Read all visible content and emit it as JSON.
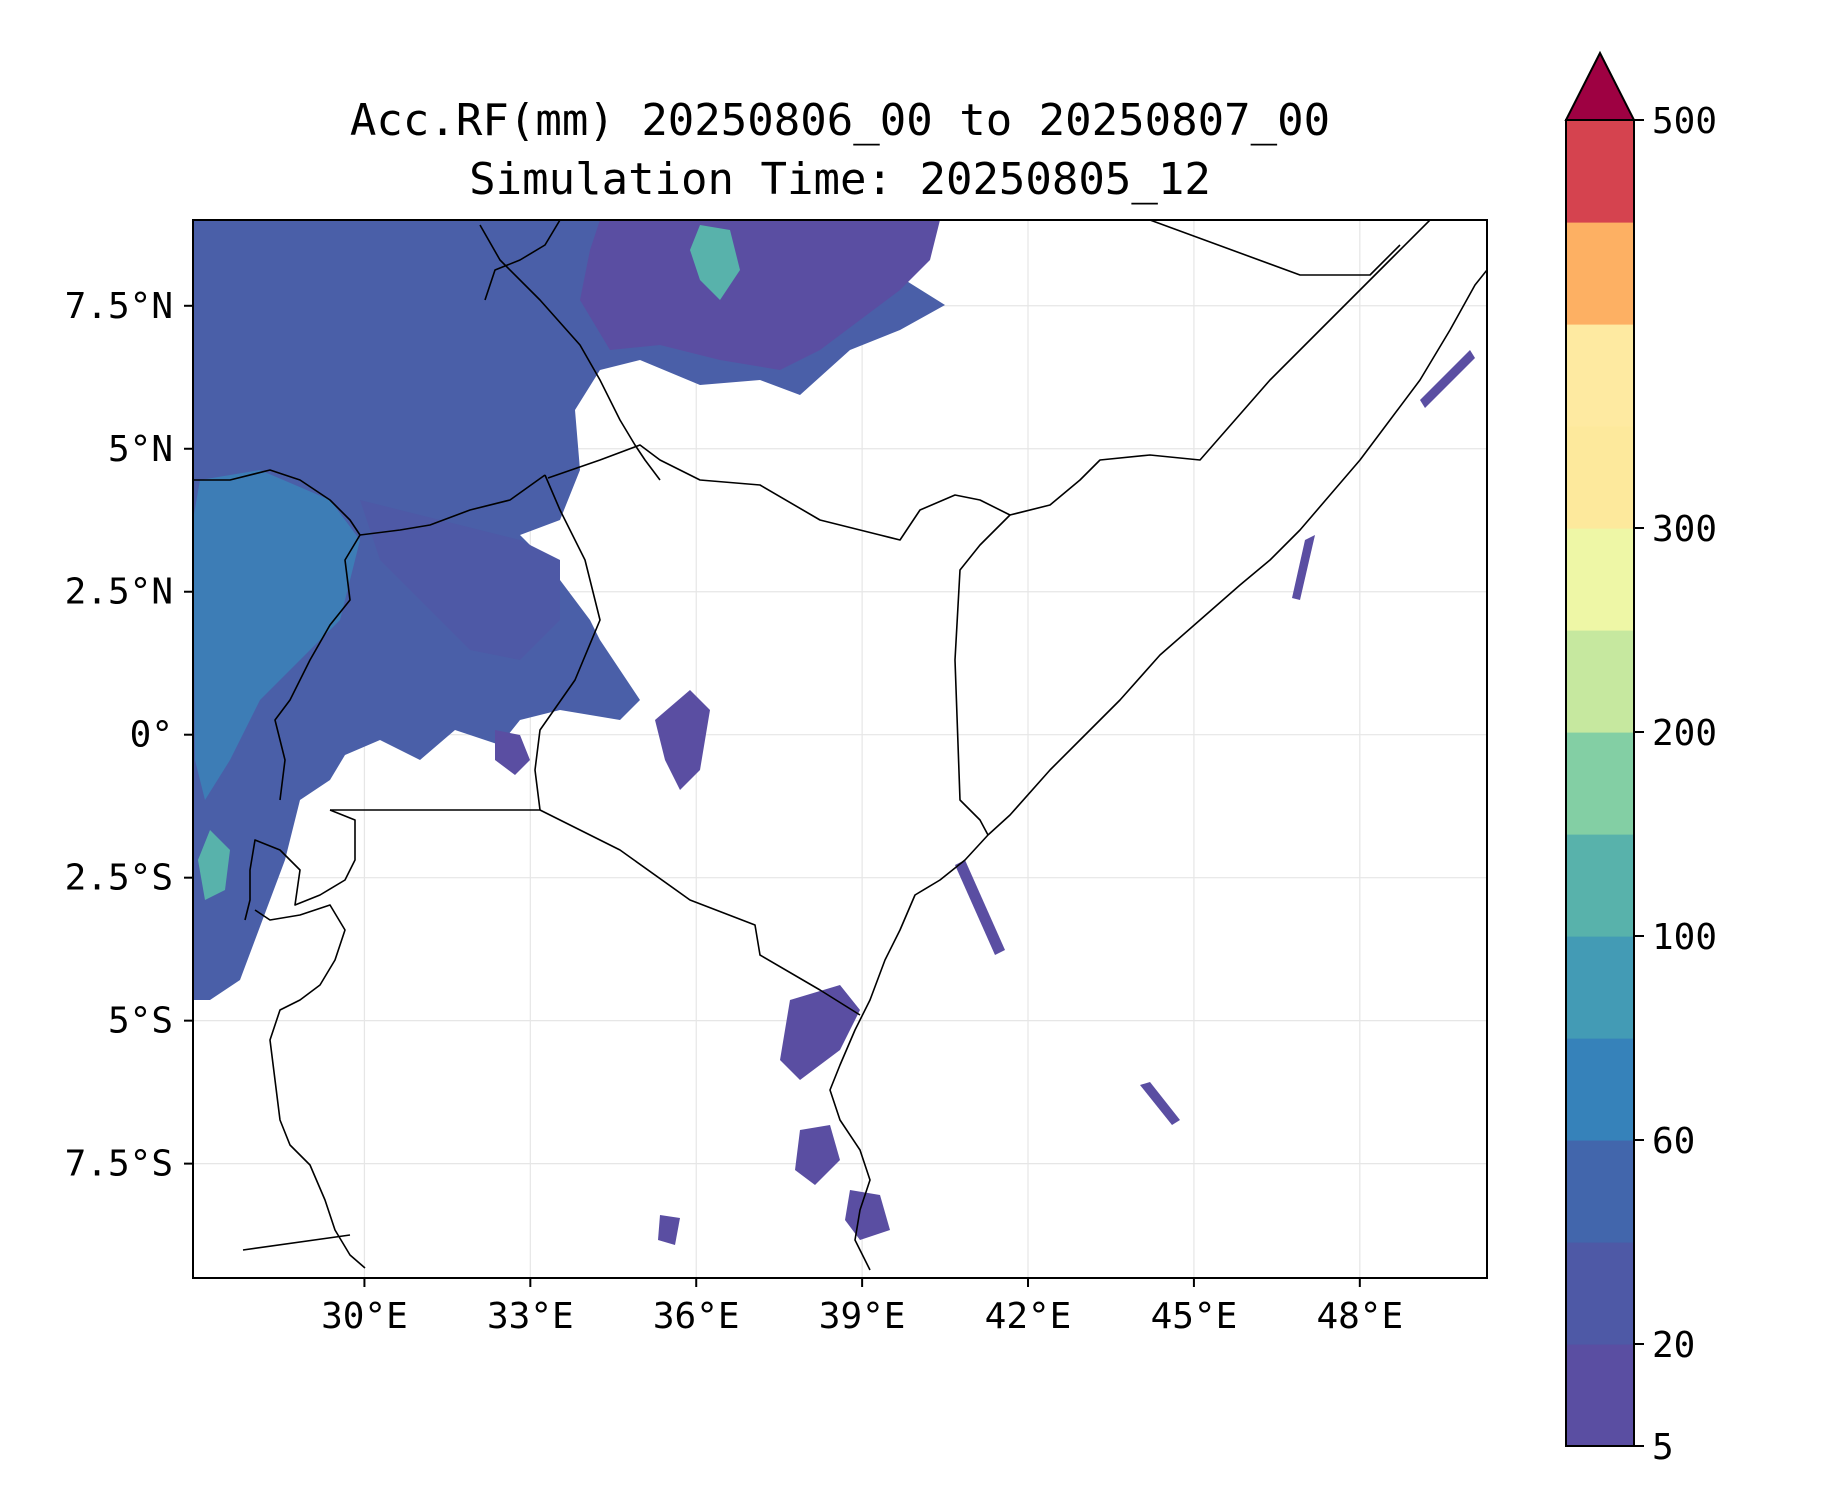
{
  "figure": {
    "title_line1": "Acc.RF(mm) 20250806_00 to 20250807_00",
    "title_line2": "Simulation Time: 20250805_12"
  },
  "map": {
    "lon_range": [
      26.9,
      50.3
    ],
    "lat_range": [
      -9.5,
      9.0
    ],
    "x_ticks": [
      {
        "lon": 30,
        "label": "30°E"
      },
      {
        "lon": 33,
        "label": "33°E"
      },
      {
        "lon": 36,
        "label": "36°E"
      },
      {
        "lon": 39,
        "label": "39°E"
      },
      {
        "lon": 42,
        "label": "42°E"
      },
      {
        "lon": 45,
        "label": "45°E"
      },
      {
        "lon": 48,
        "label": "48°E"
      }
    ],
    "y_ticks": [
      {
        "lat": 7.5,
        "label": "7.5°N"
      },
      {
        "lat": 5,
        "label": "5°N"
      },
      {
        "lat": 2.5,
        "label": "2.5°N"
      },
      {
        "lat": 0,
        "label": "0°"
      },
      {
        "lat": -2.5,
        "label": "2.5°S"
      },
      {
        "lat": -5,
        "label": "5°S"
      },
      {
        "lat": -7.5,
        "label": "7.5°S"
      }
    ],
    "grid": true
  },
  "colorbar": {
    "colors": [
      "#5a4ea2",
      "#4e59a6",
      "#4266ac",
      "#3682ba",
      "#439bb5",
      "#58b2ab",
      "#83cfa4",
      "#c6e89f",
      "#eef7a6",
      "#fde99c",
      "#feeaa1",
      "#fdb063",
      "#d5434f"
    ],
    "extend_color": "#9e0142",
    "ticks": [
      {
        "label": "5",
        "index": 0
      },
      {
        "label": "20",
        "index": 1
      },
      {
        "label": "60",
        "index": 3
      },
      {
        "label": "100",
        "index": 5
      },
      {
        "label": "200",
        "index": 7
      },
      {
        "label": "300",
        "index": 9
      },
      {
        "label": "500",
        "index": 12
      }
    ]
  }
}
